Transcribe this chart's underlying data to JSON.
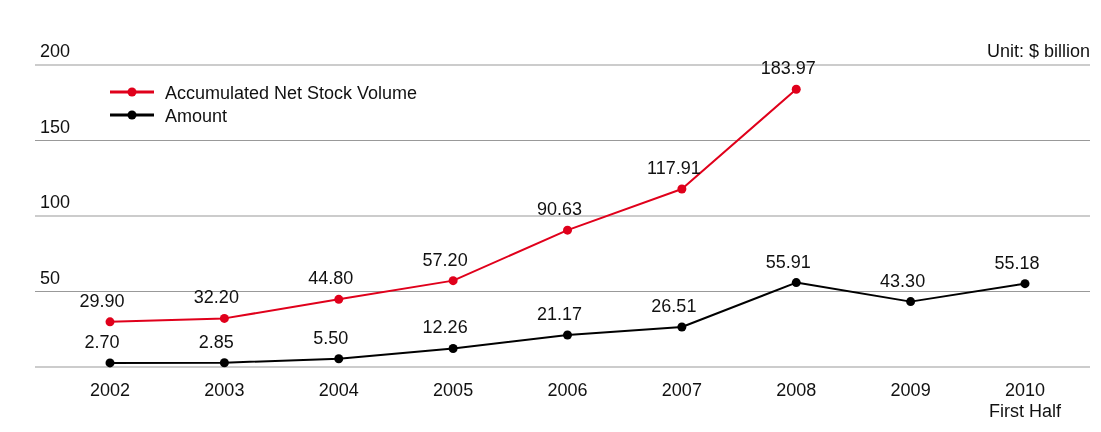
{
  "chart_data": {
    "type": "line",
    "categories": [
      "2002",
      "2003",
      "2004",
      "2005",
      "2006",
      "2007",
      "2008",
      "2009",
      "2010\nFirst Half"
    ],
    "series": [
      {
        "name": "Accumulated Net Stock Volume",
        "color": "#e0001b",
        "values": [
          29.9,
          32.2,
          44.8,
          57.2,
          90.63,
          117.91,
          183.97,
          null,
          null
        ],
        "value_labels": [
          "29.90",
          "32.20",
          "44.80",
          "57.20",
          "90.63",
          "117.91",
          "183.97",
          null,
          null
        ]
      },
      {
        "name": "Amount",
        "color": "#000000",
        "values": [
          2.7,
          2.85,
          5.5,
          12.26,
          21.17,
          26.51,
          55.91,
          43.3,
          55.18
        ],
        "value_labels": [
          "2.70",
          "2.85",
          "5.50",
          "12.26",
          "21.17",
          "26.51",
          "55.91",
          "43.30",
          "55.18"
        ]
      }
    ],
    "ylim": [
      0,
      200
    ],
    "yticks": [
      {
        "value": 0,
        "label": null
      },
      50,
      100,
      150,
      200
    ],
    "grid": "y",
    "legend": "top left",
    "marker": "circle",
    "line_style": "solid",
    "annotations": [
      "Unit: $ billion"
    ]
  }
}
